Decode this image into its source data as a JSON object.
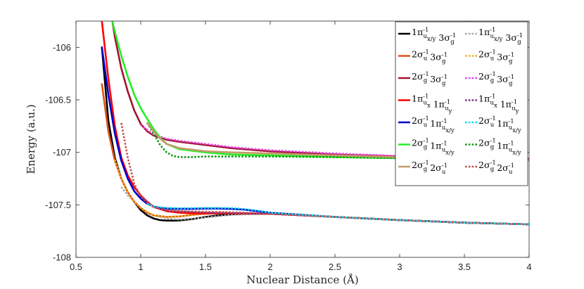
{
  "chart_data": {
    "type": "line",
    "title": "",
    "xlabel": "Nuclear Distance (Å)",
    "ylabel": "Energy (a.u.)",
    "xlim": [
      0.5,
      4.0
    ],
    "ylim": [
      -108.0,
      -105.75
    ],
    "xticks": [
      0.5,
      1,
      1.5,
      2,
      2.5,
      3,
      3.5,
      4
    ],
    "xtick_labels": [
      "0.5",
      "1",
      "1.5",
      "2",
      "2.5",
      "3",
      "3.5",
      "4"
    ],
    "yticks": [
      -108,
      -107.5,
      -107,
      -106.5,
      -106
    ],
    "ytick_labels": [
      "-108",
      "-107.5",
      "-107",
      "-106.5",
      "-106"
    ],
    "grid": false,
    "legend_position": "top-right",
    "legend_columns": 2,
    "series": [
      {
        "name": "1π_x/y 3σ_g",
        "label_parts": [
          [
            "1π",
            "u",
            "x/y"
          ],
          [
            "3σ",
            "g",
            ""
          ]
        ],
        "color": "#000000",
        "style": "solid",
        "x": [
          0.7,
          0.75,
          0.8,
          0.85,
          0.9,
          0.95,
          1.0,
          1.05,
          1.1,
          1.15,
          1.2,
          1.25,
          1.3,
          1.4,
          1.5,
          1.6,
          1.7,
          1.8,
          1.9,
          2.0,
          2.5,
          3.0,
          3.5,
          4.0
        ],
        "y": [
          -106.0,
          -106.7,
          -107.05,
          -107.25,
          -107.38,
          -107.47,
          -107.55,
          -107.6,
          -107.63,
          -107.645,
          -107.65,
          -107.65,
          -107.648,
          -107.635,
          -107.615,
          -107.6,
          -107.59,
          -107.585,
          -107.585,
          -107.585,
          -107.615,
          -107.645,
          -107.67,
          -107.685
        ]
      },
      {
        "name": "1π_x/y 3σ_g (dotted)",
        "label_parts": [
          [
            "1π",
            "u",
            "x/y"
          ],
          [
            "3σ",
            "g",
            ""
          ]
        ],
        "color": "#aaaaaa",
        "style": "dotted",
        "x": [
          0.85,
          0.9,
          1.0,
          1.1,
          1.2,
          1.3,
          1.5,
          1.7,
          2.0,
          2.5,
          3.0,
          3.5,
          4.0
        ],
        "y": [
          -107.33,
          -107.41,
          -107.53,
          -107.6,
          -107.63,
          -107.64,
          -107.62,
          -107.595,
          -107.585,
          -107.615,
          -107.645,
          -107.67,
          -107.685
        ]
      },
      {
        "name": "2σ_u 3σ_g",
        "label_parts": [
          [
            "2σ",
            "u",
            ""
          ],
          [
            "3σ",
            "g",
            ""
          ]
        ],
        "color": "#d95319",
        "style": "solid",
        "x": [
          0.7,
          0.75,
          0.8,
          0.85,
          0.9,
          0.95,
          1.0,
          1.05,
          1.1,
          1.2,
          1.3,
          1.4,
          1.5,
          1.6,
          1.7,
          1.8,
          1.9,
          2.0,
          2.5,
          3.0,
          3.5,
          4.0
        ],
        "y": [
          -106.35,
          -106.8,
          -107.08,
          -107.25,
          -107.38,
          -107.47,
          -107.53,
          -107.575,
          -107.6,
          -107.615,
          -107.61,
          -107.595,
          -107.585,
          -107.58,
          -107.58,
          -107.582,
          -107.583,
          -107.585,
          -107.615,
          -107.645,
          -107.67,
          -107.685
        ]
      },
      {
        "name": "2σ_u 3σ_g (dotted)",
        "label_parts": [
          [
            "2σ",
            "u",
            ""
          ],
          [
            "3σ",
            "g",
            ""
          ]
        ],
        "color": "#edb120",
        "style": "dotted",
        "x": [
          0.8,
          0.85,
          0.9,
          0.95,
          1.0,
          1.05,
          1.1,
          1.2,
          1.3,
          1.4,
          1.5,
          1.7,
          2.0,
          2.5,
          3.0,
          3.5,
          4.0
        ],
        "y": [
          -107.07,
          -107.25,
          -107.38,
          -107.47,
          -107.53,
          -107.57,
          -107.6,
          -107.615,
          -107.61,
          -107.59,
          -107.58,
          -107.58,
          -107.585,
          -107.615,
          -107.645,
          -107.67,
          -107.685
        ]
      },
      {
        "name": "2σ_g 3σ_g",
        "label_parts": [
          [
            "2σ",
            "g",
            ""
          ],
          [
            "3σ",
            "g",
            ""
          ]
        ],
        "color": "#a2142f",
        "style": "solid",
        "x": [
          0.7,
          0.75,
          0.8,
          0.85,
          0.9,
          0.95,
          1.0,
          1.05,
          1.1,
          1.2,
          1.3,
          1.5,
          1.7,
          2.0,
          2.5,
          3.0,
          3.5,
          4.0
        ],
        "y": [
          -105.1,
          -105.5,
          -105.9,
          -106.2,
          -106.42,
          -106.6,
          -106.73,
          -106.8,
          -106.84,
          -106.88,
          -106.9,
          -106.93,
          -106.96,
          -106.99,
          -107.02,
          -107.04,
          -107.055,
          -107.065
        ]
      },
      {
        "name": "2σ_g 3σ_g (dotted)",
        "label_parts": [
          [
            "2σ",
            "g",
            ""
          ],
          [
            "3σ",
            "g",
            ""
          ]
        ],
        "color": "#e83ce8",
        "style": "dotted",
        "x": [
          1.0,
          1.1,
          1.2,
          1.3,
          1.5,
          1.7,
          2.0,
          2.5,
          3.0,
          3.5,
          4.0
        ],
        "y": [
          -106.74,
          -106.83,
          -106.87,
          -106.89,
          -106.92,
          -106.95,
          -106.98,
          -107.01,
          -107.035,
          -107.05,
          -107.06
        ]
      },
      {
        "name": "1π_x 1π_y",
        "label_parts": [
          [
            "1π",
            "u",
            "x"
          ],
          [
            "1π",
            "u",
            "y"
          ]
        ],
        "color": "#ff0000",
        "style": "solid",
        "x": [
          0.7,
          0.75,
          0.8,
          0.85,
          0.9,
          0.95,
          1.0,
          1.05,
          1.1,
          1.2,
          1.3,
          1.4,
          1.5,
          1.7,
          2.0,
          2.5,
          3.0,
          3.5,
          4.0
        ],
        "y": [
          -105.75,
          -106.3,
          -106.75,
          -107.05,
          -107.22,
          -107.33,
          -107.41,
          -107.47,
          -107.52,
          -107.56,
          -107.575,
          -107.58,
          -107.58,
          -107.58,
          -107.585,
          -107.615,
          -107.645,
          -107.67,
          -107.685
        ]
      },
      {
        "name": "1π_x 1π_y (dotted)",
        "label_parts": [
          [
            "1π",
            "u",
            "x"
          ],
          [
            "1π",
            "u",
            "y"
          ]
        ],
        "color": "#7e2f8e",
        "style": "dotted",
        "x": [
          1.0,
          1.1,
          1.2,
          1.5,
          2.0,
          2.5,
          3.0,
          3.5,
          4.0
        ],
        "y": [
          -107.42,
          -107.52,
          -107.555,
          -107.575,
          -107.585,
          -107.615,
          -107.645,
          -107.67,
          -107.685
        ]
      },
      {
        "name": "2σ_u 1π_x/y",
        "label_parts": [
          [
            "2σ",
            "u",
            ""
          ],
          [
            "1π",
            "u",
            "x/y"
          ]
        ],
        "color": "#0000cc",
        "style": "solid",
        "x": [
          0.7,
          0.75,
          0.8,
          0.85,
          0.9,
          0.95,
          1.0,
          1.05,
          1.1,
          1.15,
          1.2,
          1.3,
          1.4,
          1.5,
          1.6,
          1.7,
          1.8,
          1.9,
          2.0,
          2.5,
          3.0,
          3.5,
          4.0
        ],
        "y": [
          -106.0,
          -106.45,
          -106.82,
          -107.08,
          -107.25,
          -107.37,
          -107.44,
          -107.49,
          -107.515,
          -107.53,
          -107.535,
          -107.538,
          -107.537,
          -107.535,
          -107.535,
          -107.538,
          -107.545,
          -107.56,
          -107.575,
          -107.615,
          -107.645,
          -107.67,
          -107.685
        ]
      },
      {
        "name": "2σ_u 1π_x/y (dotted)",
        "label_parts": [
          [
            "2σ",
            "u",
            ""
          ],
          [
            "1π",
            "u",
            "x/y"
          ]
        ],
        "color": "#00e5ee",
        "style": "dotted",
        "x": [
          1.05,
          1.1,
          1.2,
          1.3,
          1.5,
          1.7,
          1.8,
          1.9,
          2.0,
          2.5,
          3.0,
          3.5,
          4.0
        ],
        "y": [
          -107.49,
          -107.515,
          -107.53,
          -107.532,
          -107.53,
          -107.53,
          -107.54,
          -107.555,
          -107.575,
          -107.615,
          -107.645,
          -107.67,
          -107.685
        ]
      },
      {
        "name": "2σ_g 1π_x/y",
        "label_parts": [
          [
            "2σ",
            "g",
            ""
          ],
          [
            "1π",
            "u",
            "x/y"
          ]
        ],
        "color": "#22ee22",
        "style": "solid",
        "x": [
          0.78,
          0.8,
          0.85,
          0.9,
          0.95,
          1.0,
          1.05,
          1.1,
          1.15,
          1.2,
          1.3,
          1.5,
          1.7,
          2.0,
          2.5,
          3.0,
          3.5,
          4.0
        ],
        "y": [
          -105.75,
          -105.85,
          -106.08,
          -106.28,
          -106.45,
          -106.58,
          -106.68,
          -106.78,
          -106.86,
          -106.92,
          -106.97,
          -107.0,
          -107.02,
          -107.03,
          -107.045,
          -107.055,
          -107.065,
          -107.07
        ]
      },
      {
        "name": "2σ_g 1π_x/y (dotted)",
        "label_parts": [
          [
            "2σ",
            "g",
            ""
          ],
          [
            "1π",
            "u",
            "x/y"
          ]
        ],
        "color": "#119911",
        "style": "dotted",
        "x": [
          1.05,
          1.1,
          1.15,
          1.2,
          1.25,
          1.3,
          1.4,
          1.5,
          1.7,
          2.0,
          2.5,
          3.0,
          3.5,
          4.0
        ],
        "y": [
          -106.72,
          -106.82,
          -106.93,
          -107.0,
          -107.035,
          -107.045,
          -107.045,
          -107.04,
          -107.04,
          -107.04,
          -107.045,
          -107.055,
          -107.065,
          -107.08
        ]
      },
      {
        "name": "2σ_g 2σ_u",
        "label_parts": [
          [
            "2σ",
            "g",
            ""
          ],
          [
            "2σ",
            "u",
            ""
          ]
        ],
        "color": "#c49a6c",
        "style": "solid",
        "x": [
          1.05,
          1.1,
          1.15,
          1.2,
          1.3,
          1.5,
          1.7,
          2.0,
          2.5,
          3.0,
          3.5,
          4.0
        ],
        "y": [
          -106.72,
          -106.8,
          -106.87,
          -106.92,
          -106.96,
          -106.99,
          -107.0,
          -107.01,
          -107.03,
          -107.045,
          -107.055,
          -107.065
        ]
      },
      {
        "name": "2σ_g 2σ_u (dotted)",
        "label_parts": [
          [
            "2σ",
            "g",
            ""
          ],
          [
            "2σ",
            "u",
            ""
          ]
        ],
        "color": "#c0504d",
        "style": "dotted",
        "x": [
          0.85,
          0.9,
          0.95,
          1.0,
          1.05,
          1.1,
          1.2,
          1.3,
          1.5,
          1.7,
          2.0,
          2.5,
          3.0,
          3.5,
          4.0
        ],
        "y": [
          -106.72,
          -107.05,
          -107.3,
          -107.42,
          -107.48,
          -107.52,
          -107.55,
          -107.56,
          -107.565,
          -107.57,
          -107.585,
          -107.615,
          -107.645,
          -107.67,
          -107.685
        ]
      }
    ]
  }
}
